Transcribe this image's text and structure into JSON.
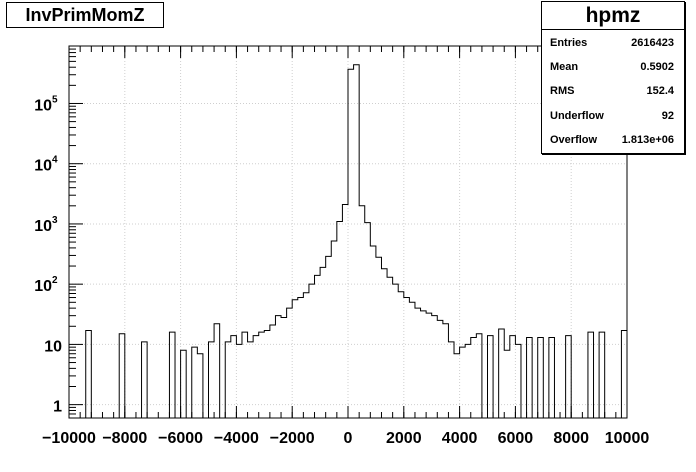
{
  "title": "InvPrimMomZ",
  "stats": {
    "name": "hpmz",
    "rows": [
      {
        "label": "Entries",
        "value": "2616423"
      },
      {
        "label": "Mean",
        "value": "0.5902"
      },
      {
        "label": "RMS",
        "value": "152.4"
      },
      {
        "label": "Underflow",
        "value": "92"
      },
      {
        "label": "Overflow",
        "value": "1.813e+06"
      }
    ]
  },
  "chart_data": {
    "type": "histogram",
    "title": "InvPrimMomZ",
    "xlabel": "",
    "ylabel": "",
    "xlim": [
      -10000,
      10000
    ],
    "ylim": [
      0.6,
      900000
    ],
    "yscale": "log",
    "grid": true,
    "legend": "top-right",
    "bin_width": 200,
    "xticks": [
      -10000,
      -8000,
      -6000,
      -4000,
      -2000,
      0,
      2000,
      4000,
      6000,
      8000,
      10000
    ],
    "xtick_labels": [
      "−10000",
      "−8000",
      "−6000",
      "−4000",
      "−2000",
      "0",
      "2000",
      "4000",
      "6000",
      "8000",
      "10000"
    ],
    "yticks": [
      1,
      10,
      100,
      1000,
      10000,
      100000
    ],
    "ytick_labels": [
      {
        "base": "1",
        "exp": ""
      },
      {
        "base": "10",
        "exp": ""
      },
      {
        "base": "10",
        "exp": "2"
      },
      {
        "base": "10",
        "exp": "3"
      },
      {
        "base": "10",
        "exp": "4"
      },
      {
        "base": "10",
        "exp": "5"
      }
    ],
    "bins": [
      {
        "x": -9400,
        "y": 17
      },
      {
        "x": -8200,
        "y": 15
      },
      {
        "x": -7400,
        "y": 11
      },
      {
        "x": -6400,
        "y": 16
      },
      {
        "x": -6000,
        "y": 8
      },
      {
        "x": -5600,
        "y": 9
      },
      {
        "x": -5400,
        "y": 7
      },
      {
        "x": -5000,
        "y": 11
      },
      {
        "x": -4800,
        "y": 22
      },
      {
        "x": -4400,
        "y": 11
      },
      {
        "x": -4200,
        "y": 14
      },
      {
        "x": -4000,
        "y": 10
      },
      {
        "x": -3800,
        "y": 16
      },
      {
        "x": -3600,
        "y": 11
      },
      {
        "x": -3400,
        "y": 14
      },
      {
        "x": -3200,
        "y": 16
      },
      {
        "x": -3000,
        "y": 17
      },
      {
        "x": -2800,
        "y": 21
      },
      {
        "x": -2600,
        "y": 30
      },
      {
        "x": -2400,
        "y": 28
      },
      {
        "x": -2200,
        "y": 40
      },
      {
        "x": -2000,
        "y": 55
      },
      {
        "x": -1800,
        "y": 60
      },
      {
        "x": -1600,
        "y": 72
      },
      {
        "x": -1400,
        "y": 100
      },
      {
        "x": -1200,
        "y": 140
      },
      {
        "x": -1000,
        "y": 190
      },
      {
        "x": -800,
        "y": 290
      },
      {
        "x": -600,
        "y": 520
      },
      {
        "x": -400,
        "y": 1100
      },
      {
        "x": -200,
        "y": 2100
      },
      {
        "x": 0,
        "y": 370000
      },
      {
        "x": 200,
        "y": 440000
      },
      {
        "x": 400,
        "y": 2000
      },
      {
        "x": 600,
        "y": 1050
      },
      {
        "x": 800,
        "y": 430
      },
      {
        "x": 1000,
        "y": 280
      },
      {
        "x": 1200,
        "y": 180
      },
      {
        "x": 1400,
        "y": 130
      },
      {
        "x": 1600,
        "y": 100
      },
      {
        "x": 1800,
        "y": 75
      },
      {
        "x": 2000,
        "y": 60
      },
      {
        "x": 2200,
        "y": 50
      },
      {
        "x": 2400,
        "y": 40
      },
      {
        "x": 2600,
        "y": 36
      },
      {
        "x": 2800,
        "y": 33
      },
      {
        "x": 3000,
        "y": 30
      },
      {
        "x": 3200,
        "y": 25
      },
      {
        "x": 3400,
        "y": 22
      },
      {
        "x": 3600,
        "y": 11
      },
      {
        "x": 3800,
        "y": 7
      },
      {
        "x": 4000,
        "y": 9
      },
      {
        "x": 4200,
        "y": 10
      },
      {
        "x": 4400,
        "y": 13
      },
      {
        "x": 4600,
        "y": 15
      },
      {
        "x": 5000,
        "y": 14
      },
      {
        "x": 5400,
        "y": 18
      },
      {
        "x": 5600,
        "y": 8
      },
      {
        "x": 5800,
        "y": 14
      },
      {
        "x": 6000,
        "y": 10
      },
      {
        "x": 6400,
        "y": 13
      },
      {
        "x": 6800,
        "y": 13
      },
      {
        "x": 7200,
        "y": 13
      },
      {
        "x": 7800,
        "y": 14
      },
      {
        "x": 8600,
        "y": 16
      },
      {
        "x": 9000,
        "y": 16
      },
      {
        "x": 9800,
        "y": 17
      }
    ]
  }
}
